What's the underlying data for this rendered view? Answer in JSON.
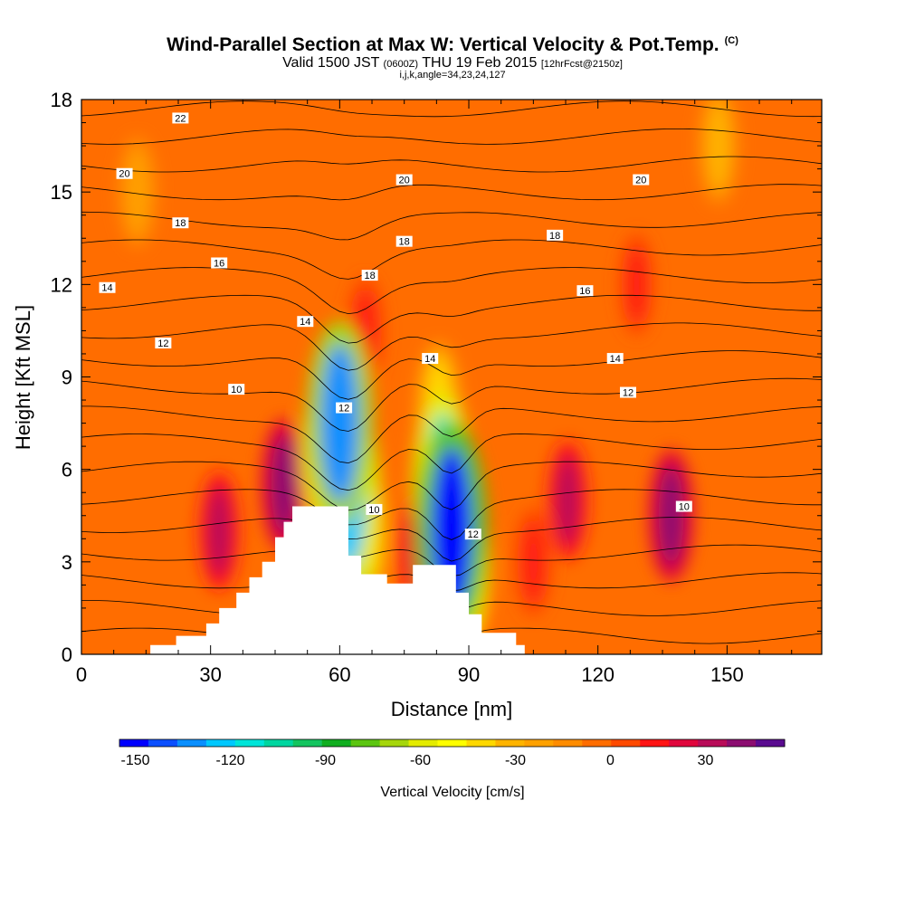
{
  "header": {
    "title": "Wind-Parallel Section at Max W: Vertical Velocity & Pot.Temp.",
    "title_mark": "(C)",
    "subtitle_a": "Valid 1500 JST",
    "subtitle_b": "(0600Z)",
    "subtitle_c": "THU 19 Feb 2015",
    "subtitle_d": "[12hrFcst@2150z]",
    "info": "i,j,k,angle=34,23,24,127"
  },
  "chart_data": {
    "type": "heatmap",
    "xlabel": "Distance [nm]",
    "ylabel": "Height [Kft MSL]",
    "xlim": [
      0,
      172
    ],
    "ylim": [
      0,
      18
    ],
    "x_ticks": [
      0,
      30,
      60,
      90,
      120,
      150
    ],
    "y_ticks": [
      0,
      3,
      6,
      9,
      12,
      15,
      18
    ],
    "grid": false,
    "background_value": 0,
    "vertical_velocity_features": [
      {
        "x": 57,
        "z": 6.5,
        "w": -75,
        "note": "descending band over first ridge"
      },
      {
        "x": 60,
        "z": 7.5,
        "w": -135
      },
      {
        "x": 62,
        "z": 5.2,
        "w": -120
      },
      {
        "x": 64,
        "z": 4.0,
        "w": -90
      },
      {
        "x": 84,
        "z": 5.5,
        "w": -110
      },
      {
        "x": 86,
        "z": 4.0,
        "w": -150
      },
      {
        "x": 88,
        "z": 3.0,
        "w": -100
      },
      {
        "x": 83,
        "z": 8.0,
        "w": -45
      },
      {
        "x": 47,
        "z": 5.5,
        "w": 45
      },
      {
        "x": 32,
        "z": 4.0,
        "w": 30
      },
      {
        "x": 66,
        "z": 10.5,
        "w": 18
      },
      {
        "x": 78,
        "z": 3.5,
        "w": 20
      },
      {
        "x": 105,
        "z": 3.0,
        "w": 18
      },
      {
        "x": 113,
        "z": 5.0,
        "w": 30
      },
      {
        "x": 137,
        "z": 4.5,
        "w": 45
      },
      {
        "x": 129,
        "z": 12.0,
        "w": 10
      },
      {
        "x": 148,
        "z": 16.5,
        "w": -30
      },
      {
        "x": 13,
        "z": 15.0,
        "w": -20
      }
    ],
    "potential_temperature_labels": [
      {
        "value": "22",
        "x": 23,
        "z": 17.4
      },
      {
        "value": "20",
        "x": 10,
        "z": 15.6
      },
      {
        "value": "20",
        "x": 75,
        "z": 15.4
      },
      {
        "value": "20",
        "x": 130,
        "z": 15.4
      },
      {
        "value": "18",
        "x": 23,
        "z": 14.0
      },
      {
        "value": "18",
        "x": 75,
        "z": 13.4
      },
      {
        "value": "18",
        "x": 110,
        "z": 13.6
      },
      {
        "value": "18",
        "x": 67,
        "z": 12.3
      },
      {
        "value": "16",
        "x": 32,
        "z": 12.7
      },
      {
        "value": "16",
        "x": 117,
        "z": 11.8
      },
      {
        "value": "14",
        "x": 6,
        "z": 11.9
      },
      {
        "value": "14",
        "x": 52,
        "z": 10.8
      },
      {
        "value": "14",
        "x": 81,
        "z": 9.6
      },
      {
        "value": "14",
        "x": 124,
        "z": 9.6
      },
      {
        "value": "12",
        "x": 19,
        "z": 10.1
      },
      {
        "value": "12",
        "x": 61,
        "z": 8.0
      },
      {
        "value": "12",
        "x": 91,
        "z": 3.9
      },
      {
        "value": "12",
        "x": 127,
        "z": 8.5
      },
      {
        "value": "10",
        "x": 36,
        "z": 8.6
      },
      {
        "value": "10",
        "x": 68,
        "z": 4.7
      },
      {
        "value": "10",
        "x": 140,
        "z": 4.8
      }
    ],
    "terrain": [
      [
        0,
        0
      ],
      [
        16,
        0
      ],
      [
        16,
        0.3
      ],
      [
        22,
        0.3
      ],
      [
        22,
        0.6
      ],
      [
        29,
        0.6
      ],
      [
        29,
        1.0
      ],
      [
        32,
        1.0
      ],
      [
        32,
        1.5
      ],
      [
        36,
        1.5
      ],
      [
        36,
        2.0
      ],
      [
        39,
        2.0
      ],
      [
        39,
        2.5
      ],
      [
        42,
        2.5
      ],
      [
        42,
        3.0
      ],
      [
        45,
        3.0
      ],
      [
        45,
        3.8
      ],
      [
        47,
        3.8
      ],
      [
        47,
        4.3
      ],
      [
        49,
        4.3
      ],
      [
        49,
        4.8
      ],
      [
        62,
        4.8
      ],
      [
        62,
        3.2
      ],
      [
        65,
        3.2
      ],
      [
        65,
        2.6
      ],
      [
        71,
        2.6
      ],
      [
        71,
        2.3
      ],
      [
        77,
        2.3
      ],
      [
        77,
        2.9
      ],
      [
        87,
        2.9
      ],
      [
        87,
        2.0
      ],
      [
        90,
        2.0
      ],
      [
        90,
        1.3
      ],
      [
        93,
        1.3
      ],
      [
        93,
        0.7
      ],
      [
        101,
        0.7
      ],
      [
        101,
        0.3
      ],
      [
        103,
        0.3
      ],
      [
        103,
        0
      ],
      [
        172,
        0
      ]
    ],
    "colorbar": {
      "label": "Vertical Velocity [cm/s]",
      "tick_labels": [
        "-150",
        "-120",
        "-90",
        "-60",
        "-30",
        "0",
        "30"
      ],
      "tick_values": [
        -150,
        -120,
        -90,
        -60,
        -30,
        0,
        30
      ],
      "min": -155,
      "max": 55,
      "colors": [
        "#0000ff",
        "#0b4fff",
        "#0a8fff",
        "#00c8ff",
        "#00e5d9",
        "#00d6a0",
        "#14c45f",
        "#10ae20",
        "#5cc511",
        "#a6d60c",
        "#e4ec00",
        "#ffff00",
        "#ffd800",
        "#ffb400",
        "#ffa100",
        "#ff8c00",
        "#ff6d00",
        "#ff4a00",
        "#ff1414",
        "#e0063c",
        "#b80c58",
        "#8b0d70",
        "#5a0b90"
      ]
    }
  }
}
